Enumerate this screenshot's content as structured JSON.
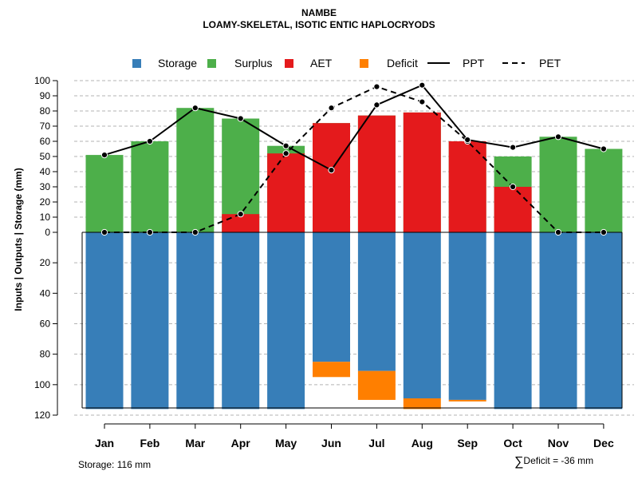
{
  "chart_data": {
    "type": "bar",
    "title": "NAMBE",
    "subtitle": "LOAMY-SKELETAL, ISOTIC ENTIC HAPLOCRYODS",
    "ylabel": "Inputs | Outputs | Storage    (mm)",
    "categories": [
      "Jan",
      "Feb",
      "Mar",
      "Apr",
      "May",
      "Jun",
      "Jul",
      "Aug",
      "Sep",
      "Oct",
      "Nov",
      "Dec"
    ],
    "ylim_top": [
      0,
      100
    ],
    "ylim_bottom": [
      0,
      120
    ],
    "y_ticks_top": [
      "0",
      "10",
      "20",
      "30",
      "40",
      "50",
      "60",
      "70",
      "80",
      "90",
      "100"
    ],
    "y_ticks_bottom": [
      "20",
      "40",
      "60",
      "80",
      "100",
      "120"
    ],
    "legend": [
      {
        "label": "Storage",
        "color": "#377eb8",
        "kind": "box"
      },
      {
        "label": "Surplus",
        "color": "#4daf4a",
        "kind": "box"
      },
      {
        "label": "AET",
        "color": "#e41a1c",
        "kind": "box"
      },
      {
        "label": "Deficit",
        "color": "#ff7f00",
        "kind": "box"
      },
      {
        "label": "PPT",
        "color": "#000000",
        "kind": "solid"
      },
      {
        "label": "PET",
        "color": "#000000",
        "kind": "dashed"
      }
    ],
    "series": {
      "AET": [
        0,
        0,
        0,
        12,
        52,
        72,
        77,
        79,
        60,
        30,
        0,
        0
      ],
      "Surplus": [
        51,
        60,
        82,
        75,
        57,
        72,
        77,
        79,
        60,
        50,
        63,
        55
      ],
      "Storage": [
        116,
        116,
        116,
        116,
        116,
        85,
        91,
        109,
        110,
        116,
        116,
        116
      ],
      "Deficit": [
        0,
        0,
        0,
        0,
        0,
        10,
        19,
        7,
        1,
        0,
        0,
        0
      ],
      "PPT": [
        51,
        60,
        82,
        75,
        57,
        41,
        84,
        97,
        61,
        56,
        63,
        55
      ],
      "PET": [
        0,
        0,
        0,
        12,
        52,
        82,
        96,
        86,
        60,
        30,
        0,
        0
      ]
    },
    "colors": {
      "storage": "#377eb8",
      "surplus": "#4daf4a",
      "aet": "#e41a1c",
      "deficit": "#ff7f00",
      "grid": "#b3b3b3"
    },
    "footer_storage": "Storage: 116 mm",
    "footer_deficit_symbol": "∑",
    "footer_deficit": "Deficit = -36 mm"
  }
}
